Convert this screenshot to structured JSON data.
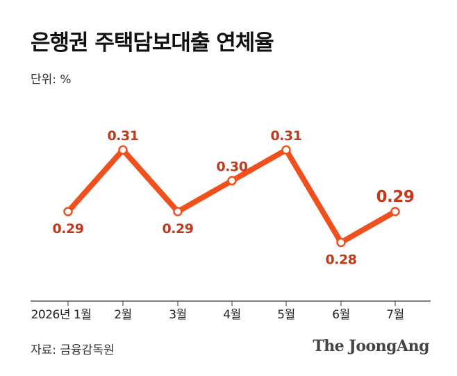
{
  "header": {
    "title": "은행권 주택담보대출 연체율",
    "unit_label": "단위: %"
  },
  "footer": {
    "source": "자료: 금융감독원",
    "brand": "The JoongAng"
  },
  "colors": {
    "line": "#f0501e",
    "label": "#c0391b",
    "axis": "#555555"
  },
  "chart_data": {
    "type": "line",
    "categories": [
      "2026년 1월",
      "2월",
      "3월",
      "4월",
      "5월",
      "6월",
      "7월"
    ],
    "values": [
      0.29,
      0.31,
      0.29,
      0.3,
      0.31,
      0.28,
      0.29
    ],
    "value_labels": [
      "0.29",
      "0.31",
      "0.29",
      "0.30",
      "0.31",
      "0.28",
      "0.29"
    ],
    "label_positions": [
      "below",
      "above",
      "below",
      "above",
      "above",
      "below",
      "above"
    ],
    "title": "은행권 주택담보대출 연체율",
    "unit": "%",
    "ylim": [
      0.272,
      0.326
    ],
    "grid": false,
    "highlight_last": true
  }
}
